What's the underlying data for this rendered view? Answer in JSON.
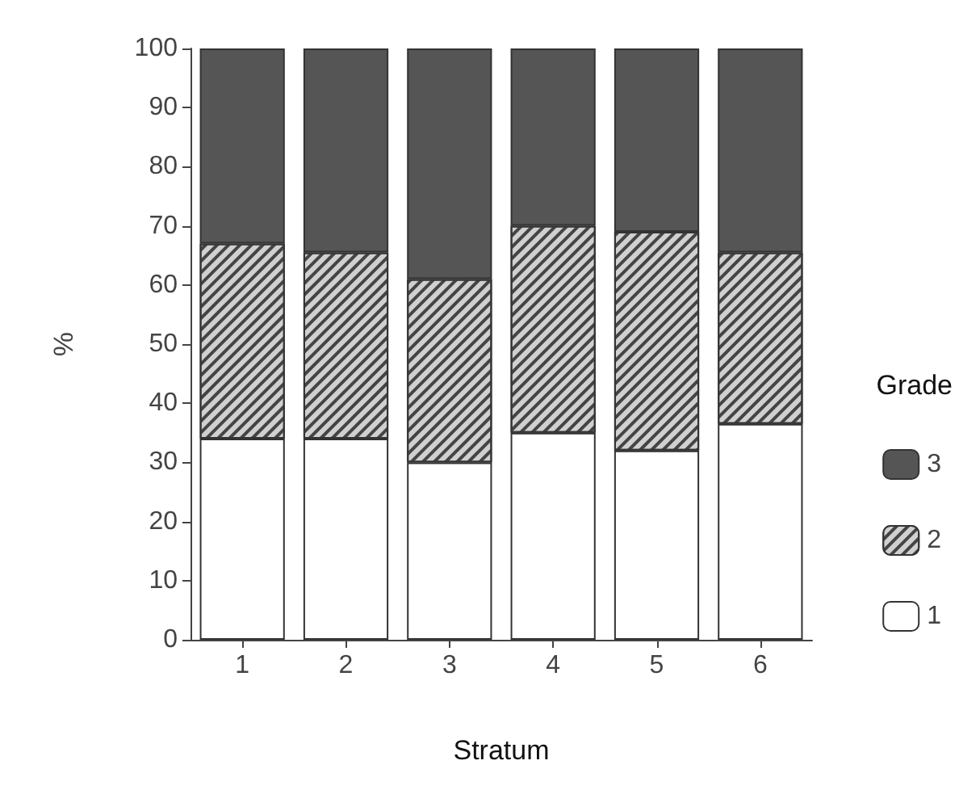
{
  "chart_data": {
    "type": "bar",
    "stacked": true,
    "xlabel": "Stratum",
    "ylabel": "%",
    "legend_title": "Grade",
    "legend": "right",
    "categories": [
      "1",
      "2",
      "3",
      "4",
      "5",
      "6"
    ],
    "series": [
      {
        "name": "1",
        "color": "#ffffff",
        "values": [
          34,
          34,
          30,
          35,
          32,
          36.5
        ]
      },
      {
        "name": "2",
        "color": "#d0d0d0",
        "values": [
          33,
          31.5,
          31,
          35,
          37,
          29
        ]
      },
      {
        "name": "3",
        "color": "#555555",
        "values": [
          33,
          34.5,
          39,
          30,
          31,
          34.5
        ]
      }
    ],
    "ylim": [
      0,
      100
    ],
    "yticks": [
      0,
      10,
      20,
      30,
      40,
      50,
      60,
      70,
      80,
      90,
      100
    ],
    "grid": false
  }
}
